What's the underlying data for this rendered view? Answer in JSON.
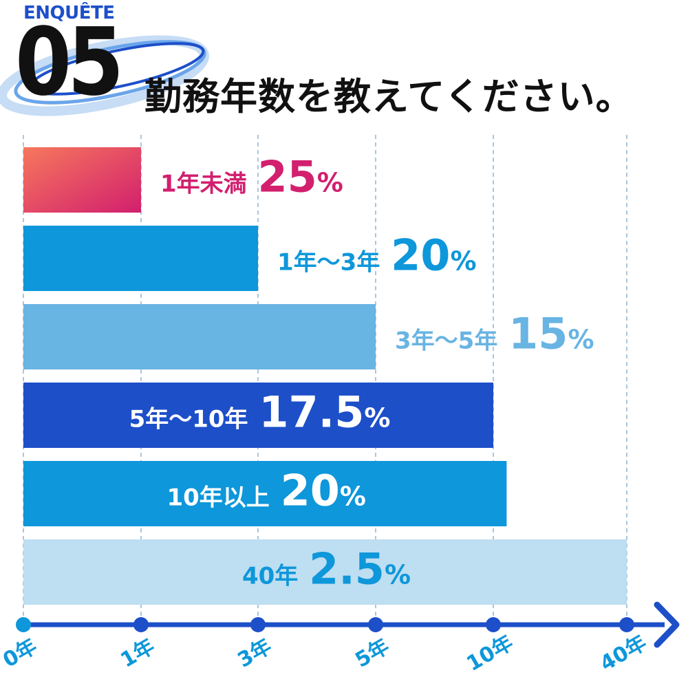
{
  "header": {
    "tag": "ENQUÊTE",
    "number": "05",
    "title": "勤務年数を教えてください。"
  },
  "colors": {
    "gradient_start": "#f6785c",
    "gradient_end": "#d21f6e",
    "blue_mid": "#0e97da",
    "blue_light": "#68b4e3",
    "blue_dark": "#1d4fc9",
    "blue_pale": "#bedef1",
    "axis": "#1d4fc9",
    "grid": "#aac6e0"
  },
  "chart_data": {
    "type": "bar",
    "orientation": "horizontal",
    "title": "",
    "xlabel": "",
    "ylabel": "",
    "x_ticks": [
      "0年",
      "1年",
      "3年",
      "5年",
      "10年",
      "40年"
    ],
    "grid": true,
    "categories": [
      "1年未満",
      "1年～3年",
      "3年～5年",
      "5年～10年",
      "10年以上",
      "40年"
    ],
    "series": [
      {
        "values": [
          25,
          20,
          15,
          17.5,
          20,
          2.5
        ],
        "value_labels": [
          "25",
          "20",
          "15",
          "17.5",
          "20",
          "2.5"
        ],
        "unit": "%",
        "bar_end_years": [
          1,
          3,
          5,
          10,
          13,
          40
        ]
      }
    ]
  }
}
